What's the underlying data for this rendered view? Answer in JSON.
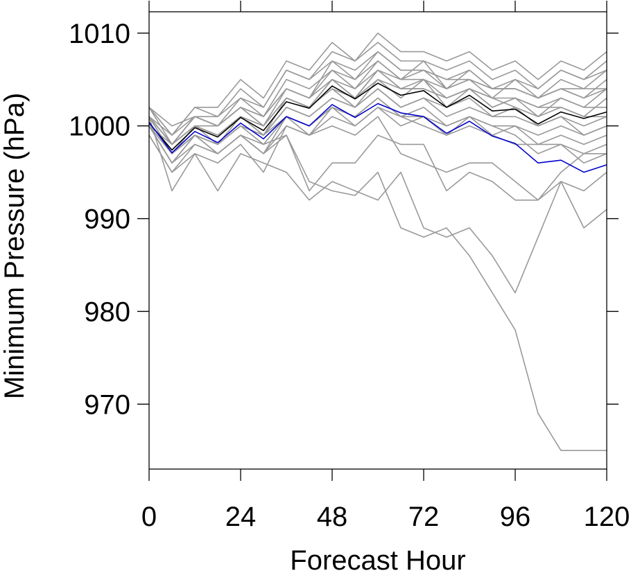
{
  "chart_data": {
    "type": "line",
    "title": "",
    "xlabel": "Forecast Hour",
    "ylabel": "Minimum Pressure (hPa)",
    "xlim": [
      0,
      120
    ],
    "ylim": [
      963,
      1012.3
    ],
    "x_ticks": [
      0,
      24,
      48,
      72,
      96,
      120
    ],
    "y_ticks": [
      970,
      980,
      990,
      1000,
      1010
    ],
    "grid": false,
    "legend": "none",
    "x": [
      0,
      6,
      12,
      18,
      24,
      30,
      36,
      42,
      48,
      54,
      60,
      66,
      72,
      78,
      84,
      90,
      96,
      102,
      108,
      114,
      120
    ],
    "colors": {
      "member": "#999999",
      "highlight_black": "#000000",
      "highlight_blue": "#0000cc"
    },
    "series": [
      {
        "color": "#000000",
        "values": [
          1000.3,
          997.4,
          999.8,
          998.8,
          1000.9,
          999.5,
          1002.6,
          1001.9,
          1004.3,
          1002.9,
          1004.6,
          1003.3,
          1003.8,
          1002.0,
          1003.3,
          1001.6,
          1001.8,
          1000.2,
          1001.5,
          1000.8,
          1001.5
        ]
      },
      {
        "color": "#0000cc",
        "values": [
          1000.4,
          997.1,
          999.4,
          998.2,
          1000.3,
          998.6,
          1001.0,
          1000.0,
          1002.3,
          1000.9,
          1002.4,
          1001.4,
          1001.0,
          999.2,
          1000.5,
          998.9,
          998.1,
          996.0,
          996.3,
          995.0,
          995.8
        ]
      },
      {
        "color": "#999999",
        "values": [
          1000.0,
          997.0,
          999.0,
          997.0,
          999.0,
          998.0,
          999.0,
          994.0,
          993.0,
          992.5,
          995.0,
          989.0,
          988.0,
          989.0,
          986.0,
          982.0,
          978.0,
          969.0,
          965.0,
          965.0,
          965.0
        ]
      },
      {
        "color": "#999999",
        "values": [
          1001.0,
          993.0,
          997.0,
          993.0,
          997.0,
          996.0,
          995.0,
          992.0,
          994.0,
          993.0,
          992.0,
          995.0,
          989.0,
          988.0,
          989.0,
          986.0,
          982.0,
          988.0,
          994.0,
          989.0,
          991.0
        ]
      },
      {
        "color": "#999999",
        "values": [
          1000.0,
          996.0,
          998.0,
          997.0,
          999.0,
          997.0,
          999.0,
          993.0,
          996.0,
          996.0,
          999.0,
          998.0,
          998.0,
          993.0,
          995.0,
          994.0,
          992.0,
          992.0,
          994.0,
          993.0,
          995.0
        ]
      },
      {
        "color": "#999999",
        "values": [
          999.0,
          995.0,
          997.0,
          996.0,
          998.0,
          995.0,
          1000.0,
          999.0,
          1000.0,
          999.0,
          1001.0,
          997.0,
          996.0,
          995.0,
          996.0,
          996.0,
          994.0,
          992.0,
          995.0,
          997.0,
          997.0
        ]
      },
      {
        "color": "#999999",
        "values": [
          1001.0,
          999.0,
          1001.0,
          1000.0,
          1002.0,
          1000.0,
          1003.0,
          1002.0,
          1005.0,
          1003.0,
          1006.0,
          1004.0,
          1004.0,
          1003.0,
          1004.0,
          1002.0,
          1003.0,
          1001.0,
          1002.0,
          1001.0,
          1003.0
        ]
      },
      {
        "color": "#999999",
        "values": [
          1002.0,
          998.0,
          1000.0,
          999.0,
          1001.0,
          999.0,
          1003.0,
          1002.0,
          1004.0,
          1002.0,
          1005.0,
          1003.0,
          1005.0,
          1002.0,
          1004.0,
          1003.0,
          1002.0,
          1001.0,
          1003.0,
          1002.0,
          1004.0
        ]
      },
      {
        "color": "#999999",
        "values": [
          1001.0,
          997.0,
          1000.0,
          998.0,
          1001.0,
          999.0,
          1002.0,
          1001.0,
          1003.0,
          1002.0,
          1004.0,
          1002.0,
          1003.0,
          1001.0,
          1002.0,
          1001.0,
          1001.0,
          1000.0,
          1001.0,
          999.0,
          1000.0
        ]
      },
      {
        "color": "#999999",
        "values": [
          1000.0,
          996.0,
          999.0,
          998.0,
          1000.0,
          998.0,
          1001.0,
          1000.0,
          1002.0,
          1000.0,
          1002.0,
          1001.0,
          1000.0,
          999.0,
          1000.0,
          999.0,
          998.0,
          998.0,
          998.0,
          997.0,
          998.0
        ]
      },
      {
        "color": "#999999",
        "values": [
          1002.0,
          999.0,
          1002.0,
          1001.0,
          1003.0,
          1001.0,
          1005.0,
          1004.0,
          1006.0,
          1005.0,
          1008.0,
          1006.0,
          1006.0,
          1005.0,
          1006.0,
          1004.0,
          1004.0,
          1003.0,
          1005.0,
          1004.0,
          1006.0
        ]
      },
      {
        "color": "#999999",
        "values": [
          1001.0,
          998.0,
          1001.0,
          1000.0,
          1002.0,
          1001.0,
          1004.0,
          1003.0,
          1007.0,
          1005.0,
          1007.0,
          1005.0,
          1007.0,
          1004.0,
          1005.0,
          1003.0,
          1005.0,
          1004.0,
          1006.0,
          1005.0,
          1007.0
        ]
      },
      {
        "color": "#999999",
        "values": [
          1001.0,
          998.0,
          1000.0,
          999.0,
          1001.0,
          1000.0,
          1003.0,
          1002.0,
          1005.0,
          1003.0,
          1006.0,
          1004.0,
          1005.0,
          1003.0,
          1004.0,
          1002.0,
          1003.0,
          1002.0,
          1003.0,
          1002.0,
          1002.0
        ]
      },
      {
        "color": "#999999",
        "values": [
          1000.0,
          997.0,
          999.0,
          998.0,
          1000.0,
          999.0,
          1002.0,
          1001.0,
          1003.0,
          1002.0,
          1004.0,
          1002.0,
          1003.0,
          1002.0,
          1003.0,
          1001.0,
          1002.0,
          1000.0,
          1001.0,
          1000.0,
          1001.0
        ]
      },
      {
        "color": "#999999",
        "values": [
          1001.0,
          998.0,
          1001.0,
          1000.0,
          1002.0,
          1000.0,
          1004.0,
          1003.0,
          1006.0,
          1004.0,
          1007.0,
          1005.0,
          1006.0,
          1004.0,
          1006.0,
          1004.0,
          1005.0,
          1003.0,
          1004.0,
          1003.0,
          1005.0
        ]
      },
      {
        "color": "#999999",
        "values": [
          1000.0,
          996.0,
          999.0,
          997.0,
          999.0,
          997.0,
          1000.0,
          999.0,
          1001.0,
          1000.0,
          1002.0,
          1000.0,
          1001.0,
          999.0,
          1001.0,
          999.0,
          1000.0,
          998.0,
          999.0,
          998.0,
          999.0
        ]
      },
      {
        "color": "#999999",
        "values": [
          1002.0,
          999.0,
          1002.0,
          1002.0,
          1005.0,
          1003.0,
          1007.0,
          1006.0,
          1009.0,
          1007.0,
          1010.0,
          1008.0,
          1008.0,
          1007.0,
          1008.0,
          1006.0,
          1007.0,
          1005.0,
          1007.0,
          1006.0,
          1008.0
        ]
      },
      {
        "color": "#999999",
        "values": [
          1001.0,
          998.0,
          1000.0,
          1000.0,
          1003.0,
          1002.0,
          1006.0,
          1005.0,
          1008.0,
          1007.0,
          1009.0,
          1007.0,
          1007.0,
          1006.0,
          1007.0,
          1005.0,
          1006.0,
          1004.0,
          1006.0,
          1005.0,
          1006.0
        ]
      },
      {
        "color": "#999999",
        "values": [
          1000.0,
          997.0,
          1000.0,
          999.0,
          1001.0,
          1000.0,
          1003.0,
          1002.0,
          1004.0,
          1003.0,
          1005.0,
          1004.0,
          1004.0,
          1003.0,
          1004.0,
          1003.0,
          1003.0,
          1002.0,
          1002.0,
          1001.0,
          1001.0
        ]
      },
      {
        "color": "#999999",
        "values": [
          999.0,
          995.0,
          998.0,
          997.0,
          999.0,
          997.0,
          1001.0,
          999.0,
          1002.0,
          1001.0,
          1003.0,
          1001.0,
          1002.0,
          1000.0,
          1001.0,
          1000.0,
          1000.0,
          999.0,
          1000.0,
          999.0,
          1000.0
        ]
      },
      {
        "color": "#999999",
        "values": [
          1002.0,
          1000.0,
          1001.0,
          1001.0,
          1004.0,
          1002.0,
          1006.0,
          1005.0,
          1007.0,
          1006.0,
          1008.0,
          1006.0,
          1006.0,
          1005.0,
          1005.0,
          1004.0,
          1004.0,
          1003.0,
          1004.0,
          1004.0,
          1004.0
        ]
      },
      {
        "color": "#999999",
        "values": [
          1001.0,
          997.0,
          999.0,
          998.0,
          1000.0,
          999.0,
          1001.0,
          1000.0,
          1002.0,
          1001.0,
          1003.0,
          1001.0,
          1001.0,
          1000.0,
          1001.0,
          1000.0,
          999.0,
          997.0,
          998.0,
          996.0,
          997.0
        ]
      },
      {
        "color": "#999999",
        "values": [
          1000.0,
          998.0,
          1001.0,
          1000.0,
          1002.0,
          1001.0,
          1004.0,
          1003.0,
          1005.0,
          1004.0,
          1006.0,
          1005.0,
          1005.0,
          1004.0,
          1005.0,
          1004.0,
          1004.0,
          1003.0,
          1004.0,
          1003.0,
          1004.0
        ]
      }
    ]
  }
}
